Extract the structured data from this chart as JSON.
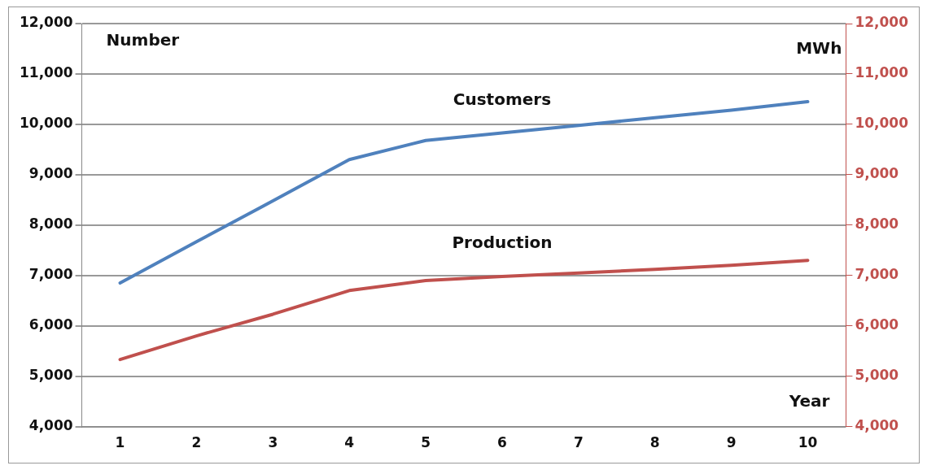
{
  "chart_data": {
    "type": "line",
    "categories": [
      "1",
      "2",
      "3",
      "4",
      "5",
      "6",
      "7",
      "8",
      "9",
      "10"
    ],
    "xlabel": "Year",
    "annotations": [
      "Number",
      "MWh"
    ],
    "series": [
      {
        "name": "Customers",
        "color": "#4f81bd",
        "values": [
          6850,
          7670,
          8480,
          9300,
          9680,
          9830,
          9980,
          10130,
          10280,
          10450
        ]
      },
      {
        "name": "Production",
        "color": "#c0504d",
        "axis": "y2",
        "values": [
          5330,
          5800,
          6230,
          6700,
          6900,
          6980,
          7050,
          7120,
          7200,
          7300
        ]
      }
    ],
    "ylim": [
      4000,
      12000
    ],
    "yticks": [
      {
        "value": 4000,
        "label": "4,000"
      },
      {
        "value": 5000,
        "label": "5,000"
      },
      {
        "value": 6000,
        "label": "6,000"
      },
      {
        "value": 7000,
        "label": "7,000"
      },
      {
        "value": 8000,
        "label": "8,000"
      },
      {
        "value": 9000,
        "label": "9,000"
      },
      {
        "value": 10000,
        "label": "10,000"
      },
      {
        "value": 11000,
        "label": "11,000"
      },
      {
        "value": 12000,
        "label": "12,000"
      }
    ],
    "y2lim": [
      4000,
      12000
    ],
    "y2ticks": [
      {
        "value": 4000,
        "label": "4,000"
      },
      {
        "value": 5000,
        "label": "5,000"
      },
      {
        "value": 6000,
        "label": "6,000"
      },
      {
        "value": 7000,
        "label": "7,000"
      },
      {
        "value": 8000,
        "label": "8,000"
      },
      {
        "value": 9000,
        "label": "9,000"
      },
      {
        "value": 10000,
        "label": "10,000"
      },
      {
        "value": 11000,
        "label": "11,000"
      },
      {
        "value": 12000,
        "label": "12,000"
      }
    ],
    "grid": "y",
    "legend": false,
    "marker": "none",
    "line_style": "solid"
  }
}
